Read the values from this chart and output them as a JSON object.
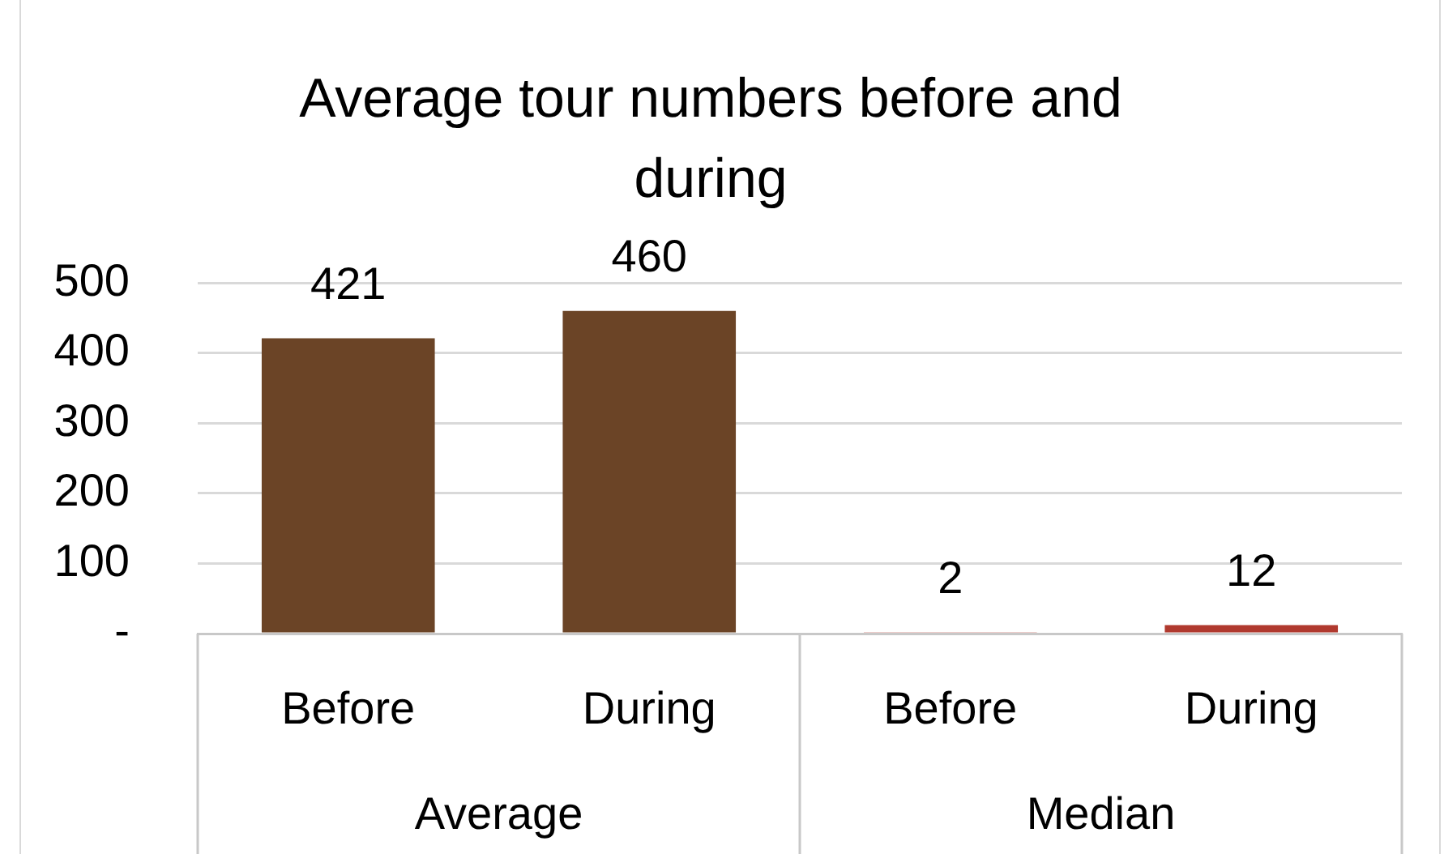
{
  "chart_data": {
    "type": "bar",
    "title": "Average tour numbers before and during",
    "categories": [
      "Before",
      "During",
      "Before",
      "During"
    ],
    "values": [
      421,
      460,
      2,
      12
    ],
    "colors": [
      "#6b4426",
      "#6b4426",
      "#b0392e",
      "#b0392e"
    ],
    "ylim": [
      0,
      500
    ],
    "yticks": [
      {
        "value": 0,
        "label": "-"
      },
      100,
      200,
      300,
      400,
      500
    ],
    "grid": "y",
    "data_labels": true,
    "annotations": [
      "Average",
      "Median"
    ]
  }
}
